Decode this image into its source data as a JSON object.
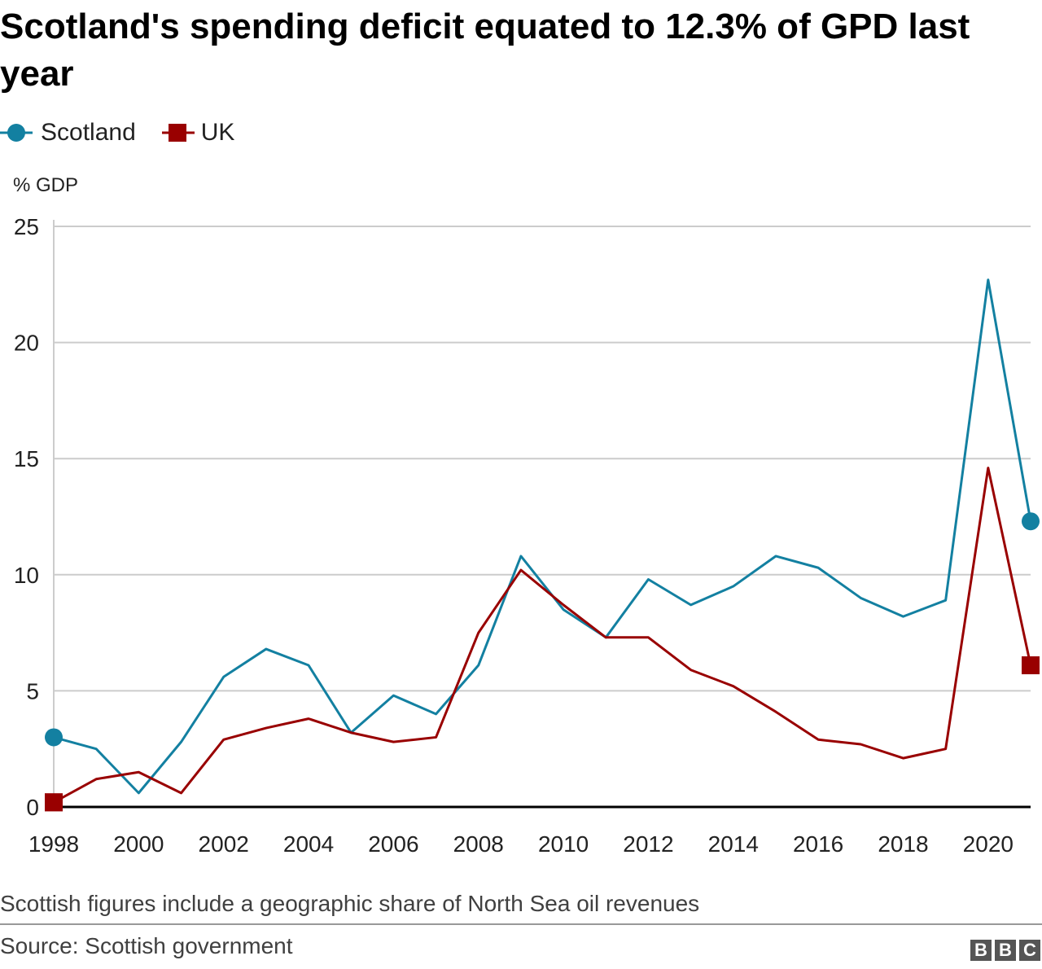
{
  "title": "Scotland's spending deficit equated to 12.3% of GPD last year",
  "footnote": "Scottish figures include a geographic share of North Sea oil revenues",
  "source": "Source: Scottish government",
  "logo_text": "BBC",
  "chart_data": {
    "type": "line",
    "title": "Scotland's spending deficit equated to 12.3% of GPD last year",
    "ylabel": "% GDP",
    "xlabel": "",
    "x": [
      1998,
      1999,
      2000,
      2001,
      2002,
      2003,
      2004,
      2005,
      2006,
      2007,
      2008,
      2009,
      2010,
      2011,
      2012,
      2013,
      2014,
      2015,
      2016,
      2017,
      2018,
      2019,
      2020,
      2021
    ],
    "xticks": [
      "1998",
      "2000",
      "2002",
      "2004",
      "2006",
      "2008",
      "2010",
      "2012",
      "2014",
      "2016",
      "2018",
      "2020"
    ],
    "yticks": [
      "0",
      "5",
      "10",
      "15",
      "20",
      "25"
    ],
    "ylim": [
      0,
      25
    ],
    "grid": true,
    "legend_position": "top-left",
    "series": [
      {
        "name": "Scotland",
        "color": "#1380a1",
        "marker": "circle",
        "values": [
          3.0,
          2.5,
          0.6,
          2.8,
          5.6,
          6.8,
          6.1,
          3.2,
          4.8,
          4.0,
          6.1,
          10.8,
          8.5,
          7.3,
          9.8,
          8.7,
          9.5,
          10.8,
          10.3,
          9.0,
          8.2,
          8.9,
          22.7,
          12.3
        ]
      },
      {
        "name": "UK",
        "color": "#990000",
        "marker": "square",
        "values": [
          0.2,
          1.2,
          1.5,
          0.6,
          2.9,
          3.4,
          3.8,
          3.2,
          2.8,
          3.0,
          7.5,
          10.2,
          8.7,
          7.3,
          7.3,
          5.9,
          5.2,
          4.1,
          2.9,
          2.7,
          2.1,
          2.5,
          14.6,
          6.1
        ]
      }
    ]
  }
}
